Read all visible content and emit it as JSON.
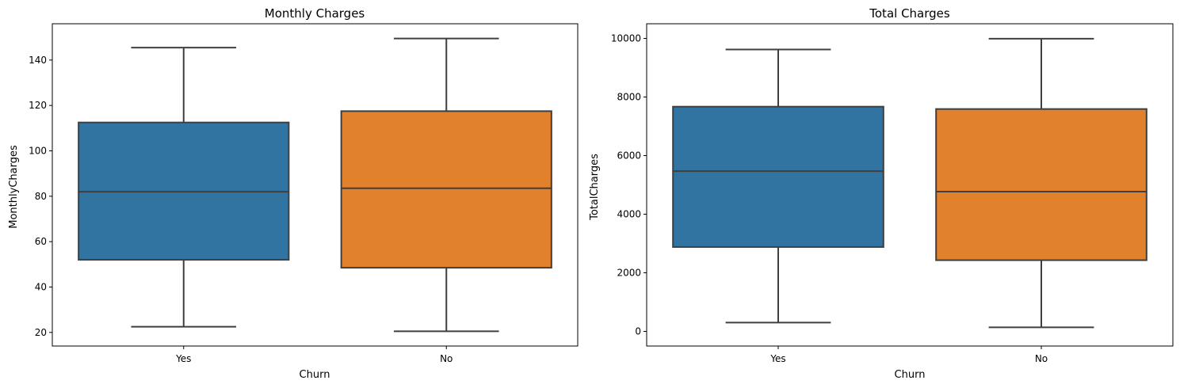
{
  "chart_data": [
    {
      "type": "box",
      "title": "Monthly Charges",
      "xlabel": "Churn",
      "ylabel": "MonthlyCharges",
      "categories": [
        "Yes",
        "No"
      ],
      "ylim": [
        14,
        156
      ],
      "yticks": [
        20,
        40,
        60,
        80,
        100,
        120,
        140
      ],
      "boxes": [
        {
          "category": "Yes",
          "min": 22.5,
          "q1": 52,
          "median": 82,
          "q3": 112.5,
          "max": 145.5,
          "color": "#3274a1"
        },
        {
          "category": "No",
          "min": 20.5,
          "q1": 48.5,
          "median": 83.5,
          "q3": 117.5,
          "max": 149.5,
          "color": "#e1812c"
        }
      ],
      "grid": false
    },
    {
      "type": "box",
      "title": "Total Charges",
      "xlabel": "Churn",
      "ylabel": "TotalCharges",
      "categories": [
        "Yes",
        "No"
      ],
      "ylim": [
        -500,
        10500
      ],
      "yticks": [
        0,
        2000,
        4000,
        6000,
        8000,
        10000
      ],
      "boxes": [
        {
          "category": "Yes",
          "min": 300,
          "q1": 2880,
          "median": 5470,
          "q3": 7670,
          "max": 9620,
          "color": "#3274a1"
        },
        {
          "category": "No",
          "min": 140,
          "q1": 2430,
          "median": 4770,
          "q3": 7590,
          "max": 9990,
          "color": "#e1812c"
        }
      ],
      "grid": false
    }
  ]
}
